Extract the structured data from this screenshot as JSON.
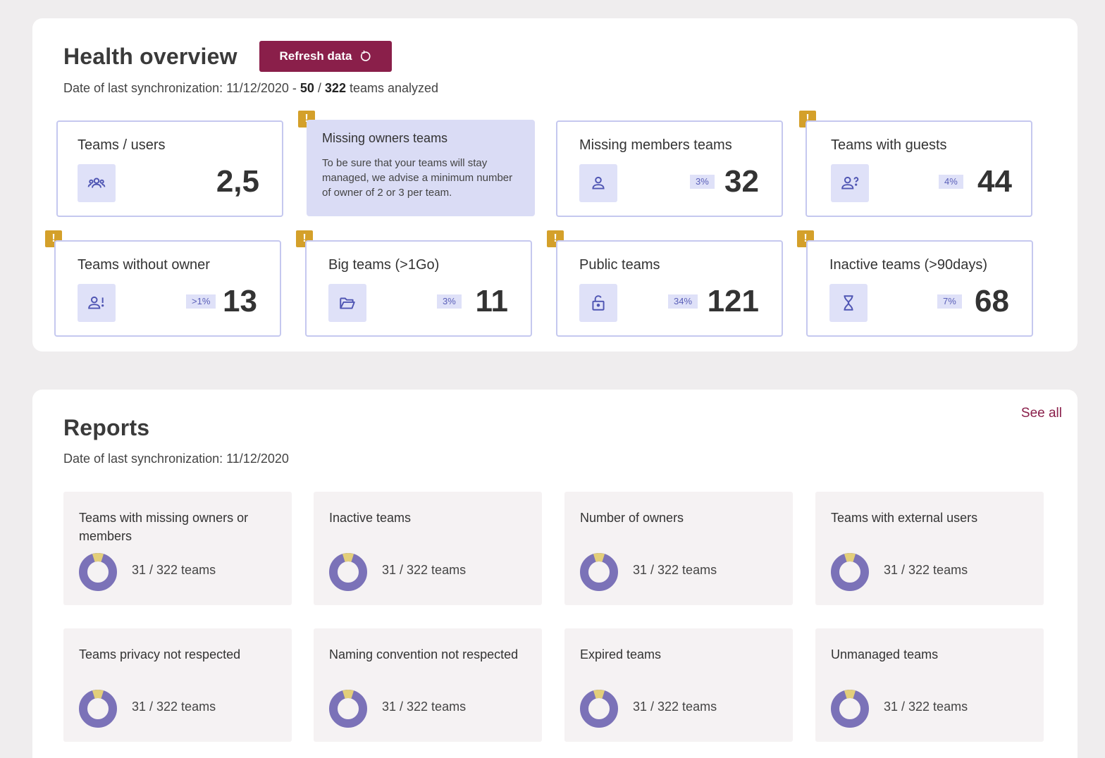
{
  "health": {
    "title": "Health overview",
    "refresh_label": "Refresh data",
    "sync_prefix": "Date of last synchronization: 11/12/2020 - ",
    "analyzed_count": "50",
    "separator": " / ",
    "total_count": "322",
    "sync_suffix": " teams analyzed",
    "cards": [
      {
        "label": "Teams / users",
        "value": "2,5",
        "pct": "",
        "icon": "users-group-icon",
        "warning": false
      },
      {
        "label": "Missing members teams",
        "value": "32",
        "pct": "3%",
        "icon": "user-icon",
        "warning": false
      },
      {
        "label": "Teams with guests",
        "value": "44",
        "pct": "4%",
        "icon": "user-question-icon",
        "warning": true
      },
      {
        "label": "Teams without owner",
        "value": "13",
        "pct": ">1%",
        "icon": "user-alert-icon",
        "warning": true
      },
      {
        "label": "Big teams (>1Go)",
        "value": "11",
        "pct": "3%",
        "icon": "folder-open-icon",
        "warning": true
      },
      {
        "label": "Public teams",
        "value": "121",
        "pct": "34%",
        "icon": "unlock-icon",
        "warning": true
      },
      {
        "label": "Inactive teams (>90days)",
        "value": "68",
        "pct": "7%",
        "icon": "hourglass-icon",
        "warning": true
      }
    ],
    "info": {
      "title": "Missing owners teams",
      "body": "To be sure that your teams will stay managed, we advise a minimum number of owner of 2 or 3 per team.",
      "warning": true
    }
  },
  "reports": {
    "title": "Reports",
    "see_all": "See all",
    "sync": "Date of last synchronization: 11/12/2020",
    "donut_colors": {
      "main": "#7b72b8",
      "highlight": "#e3cf7a"
    },
    "donut_fraction": 0.0963,
    "items": [
      {
        "title": "Teams with missing owners or members",
        "count": "31 / 322 teams"
      },
      {
        "title": "Inactive teams",
        "count": "31 / 322 teams"
      },
      {
        "title": "Number of owners",
        "count": "31 / 322 teams"
      },
      {
        "title": "Teams with external users",
        "count": "31 / 322 teams"
      },
      {
        "title": "Teams privacy not respected",
        "count": "31 / 322 teams"
      },
      {
        "title": "Naming convention not respected",
        "count": "31 / 322 teams"
      },
      {
        "title": "Expired teams",
        "count": "31 / 322 teams"
      },
      {
        "title": "Unmanaged teams",
        "count": "31 / 322 teams"
      }
    ]
  },
  "colors": {
    "accent": "#8a1f4a",
    "warning": "#d4a02a",
    "card_border": "#c5c8ef",
    "icon_bg": "#dfe1f8"
  }
}
